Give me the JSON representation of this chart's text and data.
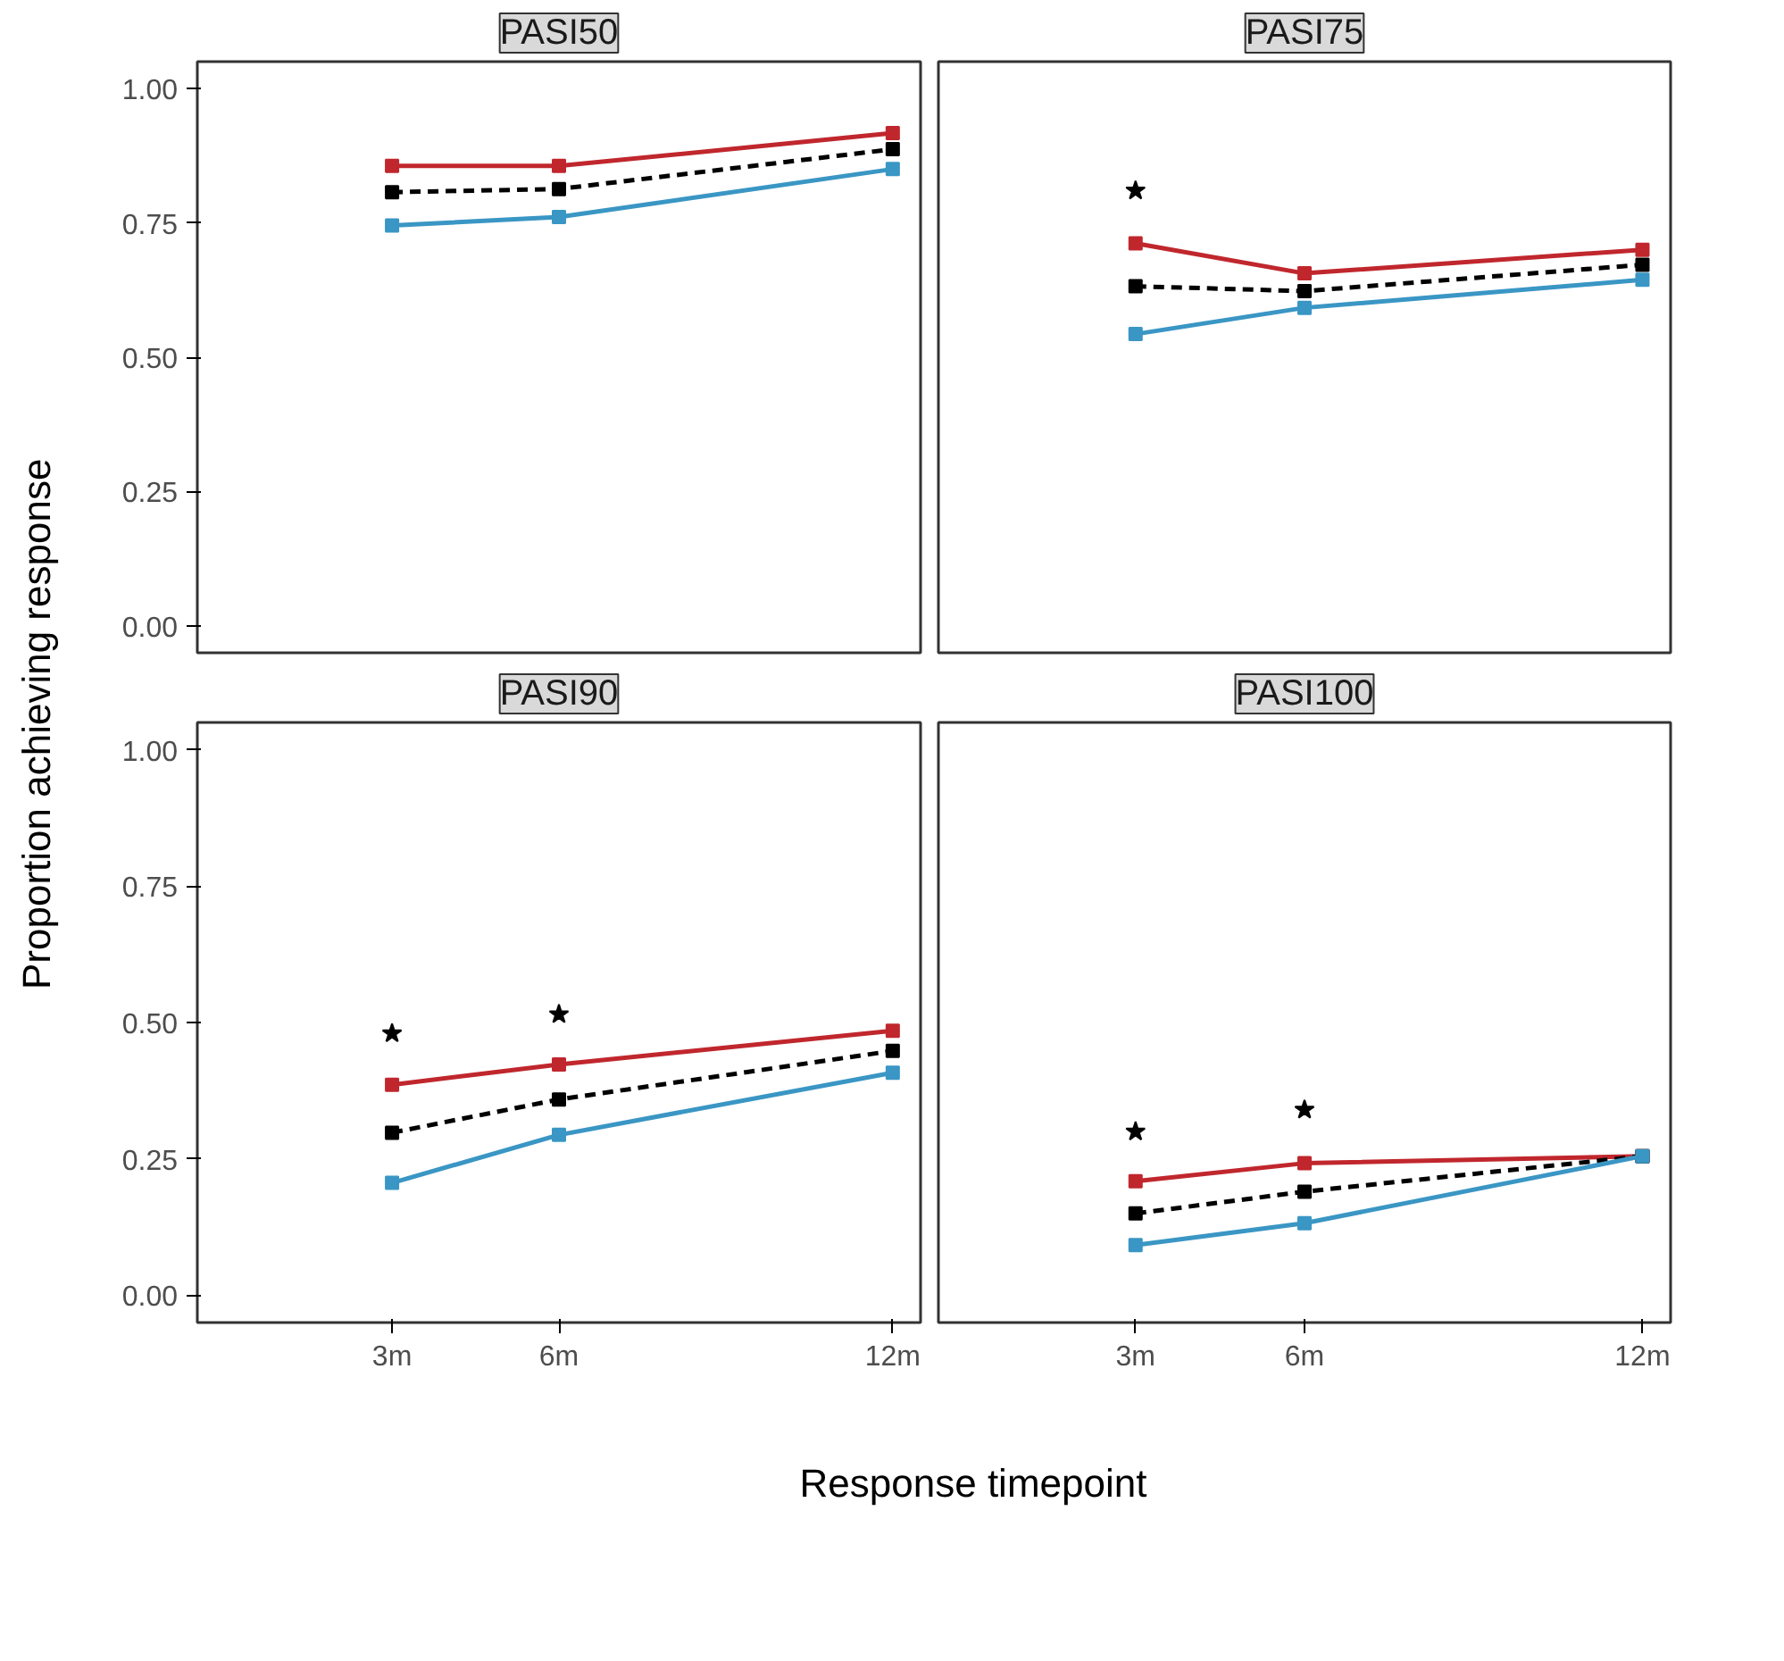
{
  "chart_data": [
    {
      "type": "line",
      "title": "PASI50",
      "ylabel": "Proportion achieving response",
      "x": [
        3,
        6,
        12
      ],
      "xlim": [
        -0.5,
        12.5
      ],
      "ylim": [
        -0.05,
        1.05
      ],
      "yticks": [
        {
          "value": 0,
          "label": "0.00"
        },
        {
          "value": 0.25,
          "label": "0.25"
        },
        {
          "value": 0.5,
          "label": "0.50"
        },
        {
          "value": 0.75,
          "label": "0.75"
        },
        {
          "value": 1,
          "label": "1.00"
        }
      ],
      "tick_labels": "y",
      "grid": false,
      "marker": "square",
      "series": [
        {
          "color": "#c0272d",
          "values": [
            0.856,
            0.856,
            0.917
          ],
          "line_style": "solid"
        },
        {
          "color": "#000000",
          "values": [
            0.807,
            0.813,
            0.887
          ],
          "line_style": "dashed"
        },
        {
          "color": "#3a96c4",
          "values": [
            0.745,
            0.761,
            0.85
          ],
          "line_style": "solid"
        }
      ]
    },
    {
      "type": "line",
      "title": "PASI75",
      "x": [
        3,
        6,
        12
      ],
      "xlim": [
        -0.5,
        12.5
      ],
      "ylim": [
        -0.05,
        1.05
      ],
      "tick_labels": false,
      "grid": false,
      "marker": "square",
      "series": [
        {
          "type": "scatter",
          "marker": "star",
          "color": "#000000",
          "values": [
            0.81,
            null,
            null
          ]
        },
        {
          "color": "#c0272d",
          "values": [
            0.712,
            0.656,
            0.7
          ],
          "line_style": "solid"
        },
        {
          "color": "#000000",
          "values": [
            0.632,
            0.623,
            0.672
          ],
          "line_style": "dashed"
        },
        {
          "color": "#3a96c4",
          "values": [
            0.543,
            0.592,
            0.644
          ],
          "line_style": "solid"
        }
      ]
    },
    {
      "type": "line",
      "title": "PASI90",
      "xlabel": "Response timepoint",
      "x": [
        3,
        6,
        12
      ],
      "xlim": [
        -0.5,
        12.5
      ],
      "ylim": [
        -0.05,
        1.05
      ],
      "xticks": [
        {
          "value": 3,
          "label": "3m"
        },
        {
          "value": 6,
          "label": "6m"
        },
        {
          "value": 12,
          "label": "12m"
        }
      ],
      "yticks": [
        {
          "value": 0,
          "label": "0.00"
        },
        {
          "value": 0.25,
          "label": "0.25"
        },
        {
          "value": 0.5,
          "label": "0.50"
        },
        {
          "value": 0.75,
          "label": "0.75"
        },
        {
          "value": 1,
          "label": "1.00"
        }
      ],
      "grid": false,
      "marker": "square",
      "series": [
        {
          "type": "scatter",
          "marker": "star",
          "color": "#000000",
          "values": [
            0.48,
            0.515,
            null
          ]
        },
        {
          "color": "#c0272d",
          "values": [
            0.386,
            0.423,
            0.485
          ],
          "line_style": "solid"
        },
        {
          "color": "#000000",
          "values": [
            0.298,
            0.359,
            0.448
          ],
          "line_style": "dashed"
        },
        {
          "color": "#3a96c4",
          "values": [
            0.206,
            0.294,
            0.408
          ],
          "line_style": "solid"
        }
      ]
    },
    {
      "type": "line",
      "title": "PASI100",
      "x": [
        3,
        6,
        12
      ],
      "xlim": [
        -0.5,
        12.5
      ],
      "ylim": [
        -0.05,
        1.05
      ],
      "xticks": [
        {
          "value": 3,
          "label": "3m"
        },
        {
          "value": 6,
          "label": "6m"
        },
        {
          "value": 12,
          "label": "12m"
        }
      ],
      "tick_labels": "x",
      "grid": false,
      "marker": "square",
      "series": [
        {
          "type": "scatter",
          "marker": "star",
          "color": "#000000",
          "values": [
            0.3,
            0.34,
            null
          ]
        },
        {
          "color": "#c0272d",
          "values": [
            0.209,
            0.242,
            0.255
          ],
          "line_style": "solid"
        },
        {
          "color": "#000000",
          "values": [
            0.15,
            0.19,
            0.255
          ],
          "line_style": "dashed"
        },
        {
          "color": "#3a96c4",
          "values": [
            0.092,
            0.132,
            0.255
          ],
          "line_style": "solid"
        }
      ]
    }
  ]
}
